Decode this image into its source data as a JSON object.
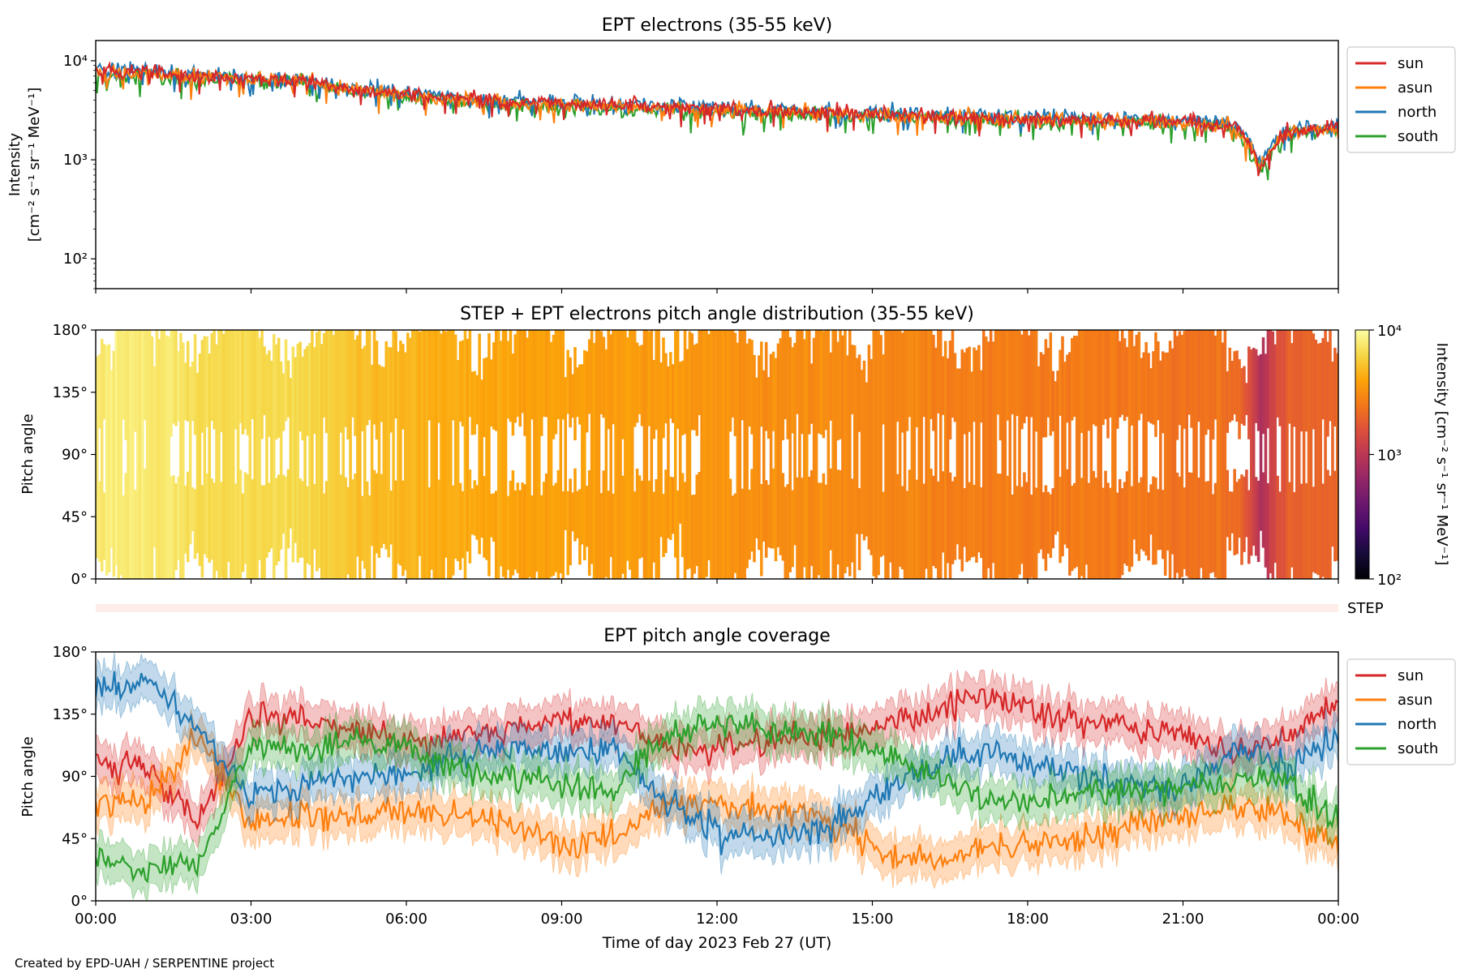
{
  "colors": {
    "sun": "#d62728",
    "asun": "#ff7f0e",
    "north": "#1f77b4",
    "south": "#2ca02c",
    "step_band": "#fdece7"
  },
  "credit": "Created by EPD-UAH / SERPENTINE project",
  "x_axis": {
    "label": "Time of day 2023 Feb 27 (UT)",
    "range_hours": [
      0,
      24
    ],
    "ticks": [
      "00:00",
      "03:00",
      "06:00",
      "09:00",
      "12:00",
      "15:00",
      "18:00",
      "21:00",
      "00:00"
    ]
  },
  "legend_labels": [
    "sun",
    "asun",
    "north",
    "south"
  ],
  "chart_data": [
    {
      "id": "intensity",
      "type": "line",
      "title": "EPT electrons (35-55 keV)",
      "ylabel": {
        "line1": "Intensity",
        "line2": "[cm⁻² s⁻¹ sr⁻¹ MeV⁻¹]"
      },
      "yscale": "log",
      "ylim": [
        50,
        16000
      ],
      "yticks": [
        {
          "value": 100,
          "label": "10²"
        },
        {
          "value": 1000,
          "label": "10³"
        },
        {
          "value": 10000,
          "label": "10⁴"
        }
      ],
      "legend_position": "outside-right",
      "series_hourly_approx": {
        "x_hours": [
          0,
          1,
          2,
          3,
          4,
          5,
          6,
          7,
          8,
          9,
          10,
          11,
          12,
          13,
          14,
          15,
          16,
          17,
          18,
          19,
          20,
          21,
          22,
          22.5,
          23,
          24
        ],
        "sun": [
          7800,
          7900,
          6800,
          6600,
          6400,
          5200,
          4600,
          4200,
          3900,
          3700,
          3600,
          3500,
          3300,
          3200,
          3000,
          2900,
          2800,
          2700,
          2600,
          2550,
          2500,
          2400,
          2200,
          800,
          1900,
          2100
        ],
        "asun": [
          7500,
          7700,
          6900,
          6500,
          6300,
          5100,
          4500,
          4100,
          3800,
          3600,
          3500,
          3400,
          3200,
          3100,
          2950,
          2850,
          2750,
          2650,
          2550,
          2500,
          2450,
          2350,
          2150,
          850,
          1850,
          2050
        ],
        "north": [
          8200,
          8300,
          7100,
          6800,
          6500,
          5300,
          4700,
          4300,
          4000,
          3800,
          3700,
          3600,
          3400,
          3300,
          3100,
          3000,
          2900,
          2800,
          2700,
          2650,
          2600,
          2500,
          2300,
          900,
          2000,
          2200
        ],
        "south": [
          6800,
          7200,
          6400,
          6300,
          6000,
          4900,
          4300,
          3900,
          3600,
          3400,
          3300,
          3200,
          3000,
          2900,
          2800,
          2700,
          2600,
          2550,
          2450,
          2400,
          2350,
          2250,
          2050,
          700,
          1800,
          2000
        ]
      }
    },
    {
      "id": "pad",
      "type": "heatmap",
      "title": "STEP + EPT electrons pitch angle distribution (35-55 keV)",
      "ylabel": "Pitch angle",
      "ylim": [
        0,
        180
      ],
      "yticks": [
        "0°",
        "45°",
        "90°",
        "135°",
        "180°"
      ],
      "colorbar": {
        "scale": "log",
        "range": [
          100,
          10000
        ],
        "ticks": [
          "10²",
          "10³",
          "10⁴"
        ],
        "label": "Intensity [cm⁻² s⁻¹ sr⁻¹ MeV⁻¹]",
        "colormap": "inferno"
      },
      "step_label": "STEP"
    },
    {
      "id": "coverage",
      "type": "line",
      "title": "EPT pitch angle coverage",
      "ylabel": "Pitch angle",
      "ylim": [
        0,
        180
      ],
      "yticks": [
        "0°",
        "45°",
        "90°",
        "135°",
        "180°"
      ],
      "legend_position": "outside-right",
      "series_hourly_approx": {
        "x_hours": [
          0,
          1,
          2,
          3,
          4,
          5,
          6,
          7,
          8,
          9,
          10,
          11,
          12,
          13,
          14,
          15,
          16,
          17,
          18,
          19,
          20,
          21,
          22,
          23,
          24
        ],
        "sun": [
          100,
          95,
          55,
          135,
          130,
          125,
          115,
          120,
          125,
          130,
          130,
          110,
          110,
          115,
          120,
          125,
          135,
          150,
          140,
          130,
          125,
          120,
          105,
          120,
          145
        ],
        "asun": [
          70,
          75,
          120,
          55,
          60,
          60,
          65,
          60,
          55,
          40,
          45,
          70,
          70,
          65,
          60,
          40,
          30,
          35,
          40,
          45,
          55,
          60,
          70,
          60,
          40
        ],
        "north": [
          150,
          160,
          125,
          75,
          85,
          90,
          90,
          105,
          110,
          105,
          110,
          75,
          50,
          45,
          50,
          75,
          95,
          110,
          100,
          90,
          85,
          80,
          110,
          95,
          120
        ],
        "south": [
          30,
          20,
          30,
          110,
          110,
          115,
          110,
          95,
          90,
          85,
          80,
          120,
          130,
          125,
          120,
          110,
          95,
          75,
          70,
          80,
          80,
          80,
          85,
          90,
          55
        ]
      }
    }
  ]
}
